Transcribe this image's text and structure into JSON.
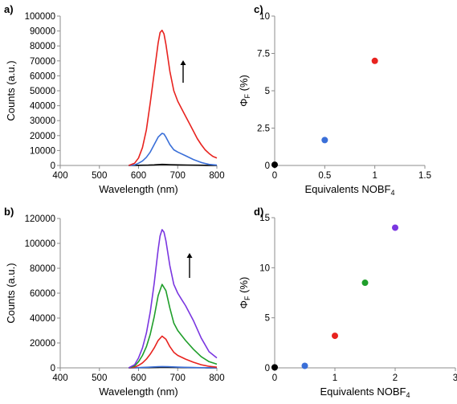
{
  "colors": {
    "black": "#000000",
    "blue": "#3a6fd8",
    "red": "#e8231f",
    "green": "#1f9e2a",
    "purple": "#7a36e0"
  },
  "chart_data": [
    {
      "id": "a",
      "panel_label": "a)",
      "type": "line",
      "xlabel": "Wavelength (nm)",
      "ylabel": "Counts (a.u.)",
      "xlim": [
        400,
        800
      ],
      "ylim": [
        0,
        100000
      ],
      "xticks": [
        400,
        500,
        600,
        700,
        800
      ],
      "yticks": [
        0,
        10000,
        20000,
        30000,
        40000,
        50000,
        60000,
        70000,
        80000,
        90000,
        100000
      ],
      "annotation": "arrow-up",
      "series": [
        {
          "color": "black",
          "x": [
            575,
            600,
            625,
            640,
            650,
            660,
            670,
            680,
            700,
            725,
            750,
            775,
            800
          ],
          "values": [
            0,
            100,
            200,
            400,
            600,
            700,
            650,
            550,
            400,
            250,
            150,
            50,
            0
          ]
        },
        {
          "color": "blue",
          "x": [
            575,
            590,
            600,
            610,
            620,
            630,
            640,
            650,
            660,
            665,
            670,
            680,
            690,
            700,
            720,
            740,
            760,
            780,
            800
          ],
          "values": [
            0,
            400,
            1500,
            3000,
            5500,
            9000,
            14000,
            19000,
            21500,
            21000,
            19000,
            14000,
            10500,
            9000,
            6500,
            4000,
            2000,
            700,
            200
          ]
        },
        {
          "color": "red",
          "x": [
            575,
            590,
            600,
            610,
            620,
            630,
            640,
            650,
            655,
            660,
            665,
            670,
            680,
            690,
            700,
            710,
            720,
            730,
            740,
            750,
            760,
            770,
            780,
            790,
            800
          ],
          "values": [
            0,
            1500,
            5000,
            12000,
            24000,
            42000,
            62000,
            82000,
            89000,
            90500,
            88000,
            81000,
            63000,
            50000,
            43000,
            38000,
            33000,
            28000,
            23000,
            18000,
            14000,
            10500,
            8000,
            6000,
            5000
          ]
        }
      ]
    },
    {
      "id": "b",
      "panel_label": "b)",
      "type": "line",
      "xlabel": "Wavelength (nm)",
      "ylabel": "Counts (a.u.)",
      "xlim": [
        400,
        800
      ],
      "ylim": [
        0,
        120000
      ],
      "xticks": [
        400,
        500,
        600,
        700,
        800
      ],
      "yticks": [
        0,
        20000,
        40000,
        60000,
        80000,
        100000,
        120000
      ],
      "annotation": "arrow-up",
      "series": [
        {
          "color": "black",
          "x": [
            575,
            600,
            625,
            650,
            660,
            675,
            700,
            725,
            750,
            775,
            800
          ],
          "values": [
            0,
            100,
            200,
            400,
            500,
            450,
            300,
            200,
            100,
            50,
            0
          ]
        },
        {
          "color": "blue",
          "x": [
            575,
            600,
            625,
            650,
            660,
            675,
            700,
            725,
            750,
            775,
            800
          ],
          "values": [
            0,
            200,
            500,
            900,
            1000,
            900,
            600,
            400,
            200,
            100,
            0
          ]
        },
        {
          "color": "red",
          "x": [
            575,
            590,
            600,
            610,
            620,
            630,
            640,
            650,
            660,
            670,
            680,
            690,
            700,
            720,
            740,
            760,
            780,
            800
          ],
          "values": [
            0,
            500,
            2000,
            4000,
            7000,
            11000,
            16000,
            22000,
            25500,
            23000,
            17000,
            12500,
            10000,
            7000,
            4500,
            2500,
            1200,
            500
          ]
        },
        {
          "color": "green",
          "x": [
            575,
            590,
            600,
            610,
            620,
            630,
            640,
            650,
            660,
            670,
            680,
            690,
            700,
            720,
            740,
            760,
            780,
            800
          ],
          "values": [
            0,
            1500,
            5000,
            10000,
            17000,
            27000,
            41000,
            58000,
            67000,
            62000,
            48000,
            36000,
            30000,
            22000,
            15000,
            9000,
            5000,
            3000
          ]
        },
        {
          "color": "purple",
          "x": [
            575,
            590,
            600,
            610,
            620,
            630,
            640,
            650,
            655,
            660,
            665,
            670,
            680,
            690,
            700,
            710,
            720,
            740,
            760,
            780,
            800
          ],
          "values": [
            0,
            2500,
            8000,
            16000,
            28000,
            45000,
            68000,
            95000,
            106000,
            111000,
            109000,
            102000,
            82000,
            67000,
            60000,
            55000,
            50000,
            38000,
            24000,
            13000,
            8000
          ]
        }
      ]
    },
    {
      "id": "c",
      "panel_label": "c)",
      "type": "scatter",
      "xlabel": "Equivalents NOBF",
      "xlabel_sub": "4",
      "ylabel": "Φ",
      "ylabel_sub": "F",
      "ylabel_tail": " (%)",
      "xlim": [
        0,
        1.5
      ],
      "ylim": [
        0,
        10
      ],
      "xticks": [
        0,
        0.5,
        1,
        1.5
      ],
      "xtick_labels": [
        "0",
        "0.5",
        "1",
        "1.5"
      ],
      "yticks": [
        0,
        2.5,
        5,
        7.5,
        10
      ],
      "ytick_labels": [
        "0",
        "2.5",
        "5",
        "7.5",
        "10"
      ],
      "points": [
        {
          "x": 0,
          "y": 0.05,
          "color": "black"
        },
        {
          "x": 0.5,
          "y": 1.7,
          "color": "blue"
        },
        {
          "x": 1,
          "y": 7.0,
          "color": "red"
        }
      ]
    },
    {
      "id": "d",
      "panel_label": "d)",
      "type": "scatter",
      "xlabel": "Equivalents NOBF",
      "xlabel_sub": "4",
      "ylabel": "Φ",
      "ylabel_sub": "F",
      "ylabel_tail": " (%)",
      "xlim": [
        0,
        3
      ],
      "ylim": [
        0,
        15
      ],
      "xticks": [
        0,
        1,
        2,
        3
      ],
      "xtick_labels": [
        "0",
        "1",
        "2",
        "3"
      ],
      "yticks": [
        0,
        5,
        10,
        15
      ],
      "ytick_labels": [
        "0",
        "5",
        "10",
        "15"
      ],
      "points": [
        {
          "x": 0,
          "y": 0.05,
          "color": "black"
        },
        {
          "x": 0.5,
          "y": 0.2,
          "color": "blue"
        },
        {
          "x": 1,
          "y": 3.2,
          "color": "red"
        },
        {
          "x": 1.5,
          "y": 8.5,
          "color": "green"
        },
        {
          "x": 2,
          "y": 14.0,
          "color": "purple"
        }
      ]
    }
  ]
}
